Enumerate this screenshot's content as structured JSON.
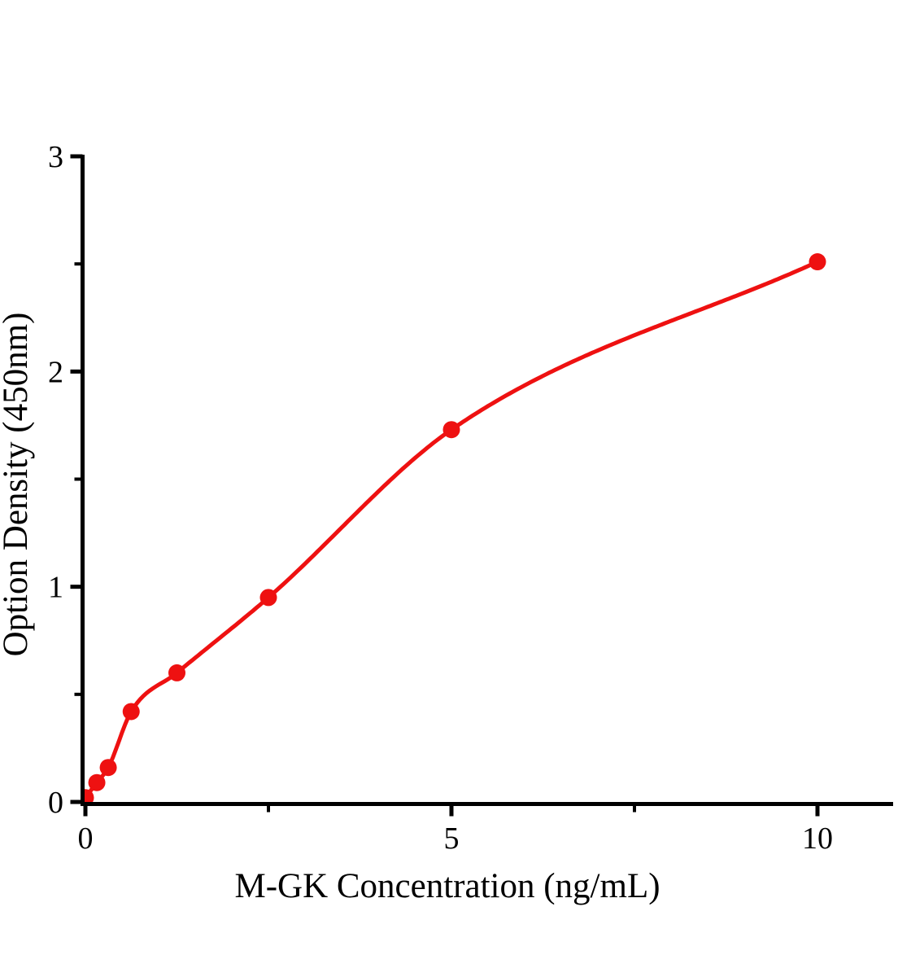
{
  "figure": {
    "background": "#ffffff"
  },
  "chart_data": {
    "type": "scatter",
    "title": "",
    "xlabel": "M-GK Concentration（ng/mL）",
    "ylabel": "Option Density（450nm）",
    "legend": false,
    "grid": false,
    "axis_color": "#000000",
    "x_axis": {
      "min": 0,
      "max": 11,
      "ticks_major": [
        0,
        5,
        10
      ],
      "tick_labels": [
        "0",
        "5",
        "10"
      ],
      "ticks_minor": [
        2.5,
        7.5
      ]
    },
    "y_axis": {
      "min": 0,
      "max": 3,
      "ticks_major": [
        0,
        1,
        2,
        3
      ],
      "tick_labels": [
        "0",
        "1",
        "2",
        "3"
      ],
      "ticks_minor": [
        0.5,
        1.5,
        2.5
      ]
    },
    "series": [
      {
        "marker": "circle",
        "color": "#ee1111",
        "fit_line": true,
        "points": [
          {
            "x": 0,
            "y": 0.02
          },
          {
            "x": 0.156,
            "y": 0.09
          },
          {
            "x": 0.312,
            "y": 0.16
          },
          {
            "x": 0.625,
            "y": 0.42
          },
          {
            "x": 1.25,
            "y": 0.6
          },
          {
            "x": 2.5,
            "y": 0.95
          },
          {
            "x": 5,
            "y": 1.73
          },
          {
            "x": 10,
            "y": 2.51
          }
        ]
      }
    ]
  }
}
